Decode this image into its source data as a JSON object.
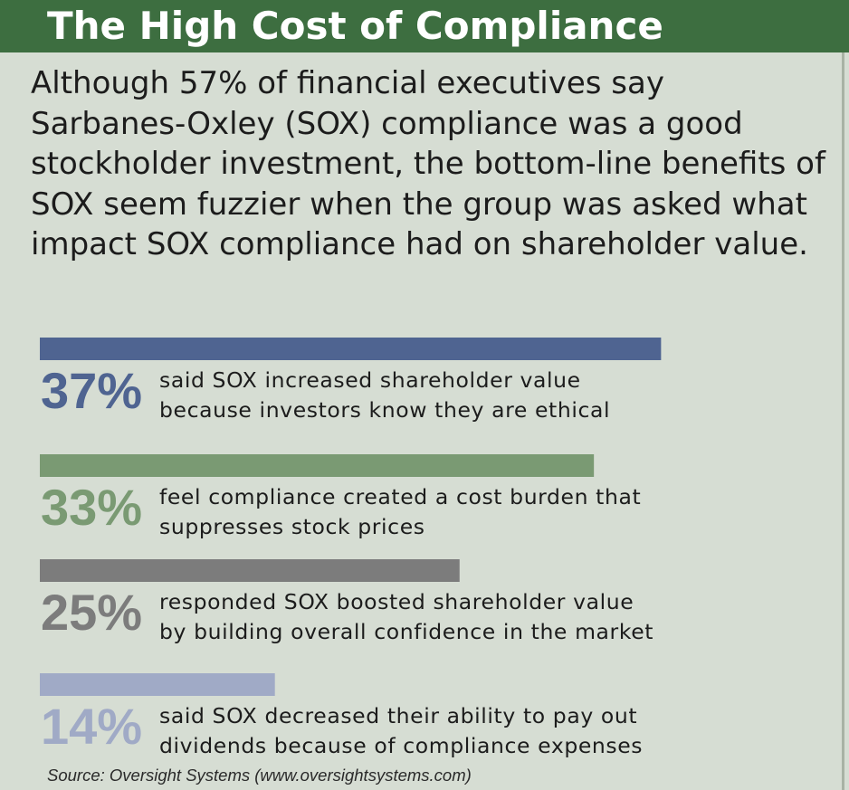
{
  "title": "The High Cost of Compliance",
  "intro": "Although 57% of financial executives say Sarbanes-Oxley (SOX) compliance was a good stockholder investment, the bottom-line benefits of SOX seem fuzzier when the group was asked what impact SOX compliance had on shareholder value.",
  "chart_data": {
    "type": "bar",
    "orientation": "horizontal",
    "title": "The High Cost of Compliance",
    "xlabel": "",
    "ylabel": "",
    "xlim": [
      0,
      50
    ],
    "categories": [
      "said SOX increased shareholder value because investors know they are ethical",
      "feel compliance created a cost burden that suppresses stock prices",
      "responded SOX boosted shareholder value by building overall confidence in the market",
      "said SOX decreased their ability to pay out dividends because of compliance expenses"
    ],
    "values": [
      37,
      33,
      25,
      14
    ],
    "labels": [
      "37%",
      "33%",
      "25%",
      "14%"
    ],
    "desc_lines": [
      [
        "said SOX increased shareholder value",
        "because investors know they are ethical"
      ],
      [
        "feel compliance created a cost burden that",
        "suppresses stock prices"
      ],
      [
        "responded SOX boosted shareholder value",
        "by building overall confidence in the market"
      ],
      [
        "said SOX decreased their ability to pay out",
        "dividends because of compliance expenses"
      ]
    ],
    "colors": [
      "#4f6491",
      "#7a9a73",
      "#7c7c7c",
      "#a0aac6"
    ],
    "grid": false,
    "legend": "none"
  },
  "source": "Source: Oversight Systems (www.oversightsystems.com)"
}
